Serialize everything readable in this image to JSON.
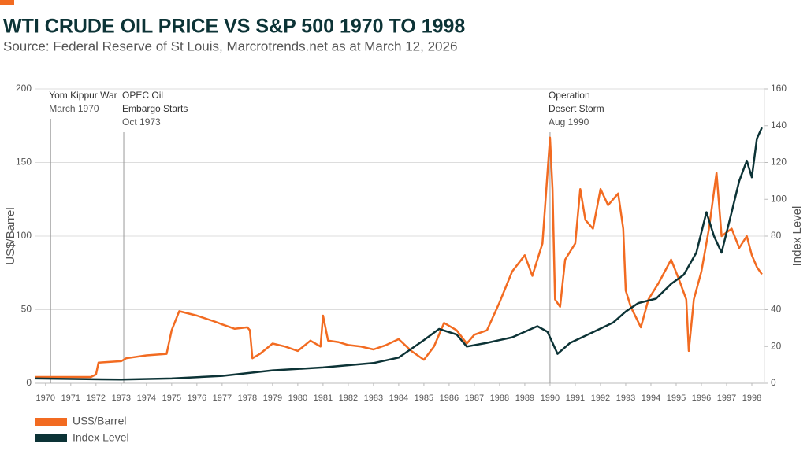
{
  "chart_data": {
    "type": "line",
    "title": "WTI CRUDE OIL PRICE VS S&P 500 1970 TO 1998",
    "subtitle": "Source: Federal Reserve of St Louis, Marcrotrends.net as at March 12, 2026",
    "y_label": "US$/Barrel",
    "y2_label": "Index Level",
    "xlim": [
      1969.6,
      1998.5
    ],
    "xticks": [
      1970,
      1971,
      1972,
      1973,
      1974,
      1975,
      1976,
      1977,
      1978,
      1979,
      1980,
      1981,
      1982,
      1983,
      1984,
      1985,
      1986,
      1987,
      1988,
      1989,
      1990,
      1991,
      1992,
      1993,
      1994,
      1995,
      1996,
      1997,
      1998
    ],
    "ylim": [
      0,
      200
    ],
    "yticks": [
      0,
      50,
      100,
      150,
      200
    ],
    "y2lim": [
      0,
      160
    ],
    "y2ticks": [
      0,
      20,
      40,
      80,
      100,
      120,
      140,
      160
    ],
    "grid": true,
    "legend": "bottom-left",
    "annotations": [
      {
        "x": 1970.2,
        "lines": [
          "Yom Kippur War",
          "March 1970"
        ]
      },
      {
        "x": 1973.1,
        "lines": [
          "OPEC Oil",
          "Embargo Starts",
          "Oct 1973"
        ]
      },
      {
        "x": 1990.0,
        "lines": [
          "Operation",
          "Desert Storm",
          "Aug 1990"
        ]
      }
    ],
    "series": [
      {
        "name": "US$/Barrel",
        "color": "#f26b21",
        "axis": "y",
        "x": [
          1969.6,
          1971.8,
          1972.0,
          1972.1,
          1973.0,
          1973.2,
          1974.0,
          1974.8,
          1975.0,
          1975.3,
          1976.0,
          1976.7,
          1977.0,
          1977.5,
          1978.0,
          1978.1,
          1978.2,
          1978.5,
          1979.0,
          1979.5,
          1980.0,
          1980.5,
          1980.9,
          1981.0,
          1981.2,
          1981.6,
          1982.0,
          1982.5,
          1983.0,
          1983.5,
          1984.0,
          1984.5,
          1985.0,
          1985.4,
          1985.8,
          1986.3,
          1986.7,
          1987.0,
          1987.5,
          1988.0,
          1988.5,
          1989.0,
          1989.3,
          1989.7,
          1989.8,
          1990.0,
          1990.1,
          1990.2,
          1990.4,
          1990.6,
          1991.0,
          1991.2,
          1991.4,
          1991.7,
          1992.0,
          1992.3,
          1992.7,
          1992.9,
          1993.0,
          1993.2,
          1993.6,
          1993.9,
          1994.3,
          1994.8,
          1995.1,
          1995.4,
          1995.5,
          1995.7,
          1996.0,
          1996.3,
          1996.6,
          1996.8,
          1997.2,
          1997.5,
          1997.8,
          1998.0,
          1998.2,
          1998.4
        ],
        "values": [
          4.3,
          4.3,
          6,
          14,
          15,
          17,
          19,
          20,
          36,
          49,
          46,
          42,
          40,
          37,
          38,
          36,
          17,
          20,
          27,
          25,
          22,
          29,
          25,
          46,
          29,
          28,
          26,
          25,
          23,
          26,
          30,
          22,
          16,
          25,
          41,
          36,
          27,
          33,
          36,
          55,
          76,
          87,
          73,
          95,
          119,
          167,
          132,
          57,
          52,
          84,
          95,
          132,
          111,
          105,
          132,
          121,
          129,
          105,
          63,
          52,
          38,
          57,
          68,
          84,
          71,
          57,
          22,
          57,
          76,
          105,
          143,
          100,
          105,
          92,
          100,
          87,
          79,
          74
        ]
      },
      {
        "name": "Index Level",
        "color": "#0c3336",
        "axis": "y2",
        "x": [
          1969.6,
          1973.0,
          1975.0,
          1977.0,
          1979.0,
          1981.0,
          1983.0,
          1984.0,
          1985.0,
          1985.6,
          1986.3,
          1986.7,
          1987.5,
          1988.5,
          1989.5,
          1989.9,
          1990.3,
          1990.8,
          1991.5,
          1992.5,
          1993.0,
          1993.5,
          1994.2,
          1994.8,
          1995.3,
          1995.8,
          1996.2,
          1996.5,
          1996.8,
          1997.2,
          1997.5,
          1997.8,
          1998.0,
          1998.2,
          1998.4
        ],
        "values": [
          2.6,
          2,
          2.6,
          4,
          7,
          8.6,
          11,
          14,
          23.5,
          29.5,
          26.5,
          20,
          22,
          25,
          31,
          28,
          16,
          22,
          26.5,
          33,
          39,
          43.6,
          46,
          54,
          59,
          71,
          93,
          80,
          71,
          93,
          110,
          121,
          112,
          133,
          139
        ]
      }
    ]
  }
}
